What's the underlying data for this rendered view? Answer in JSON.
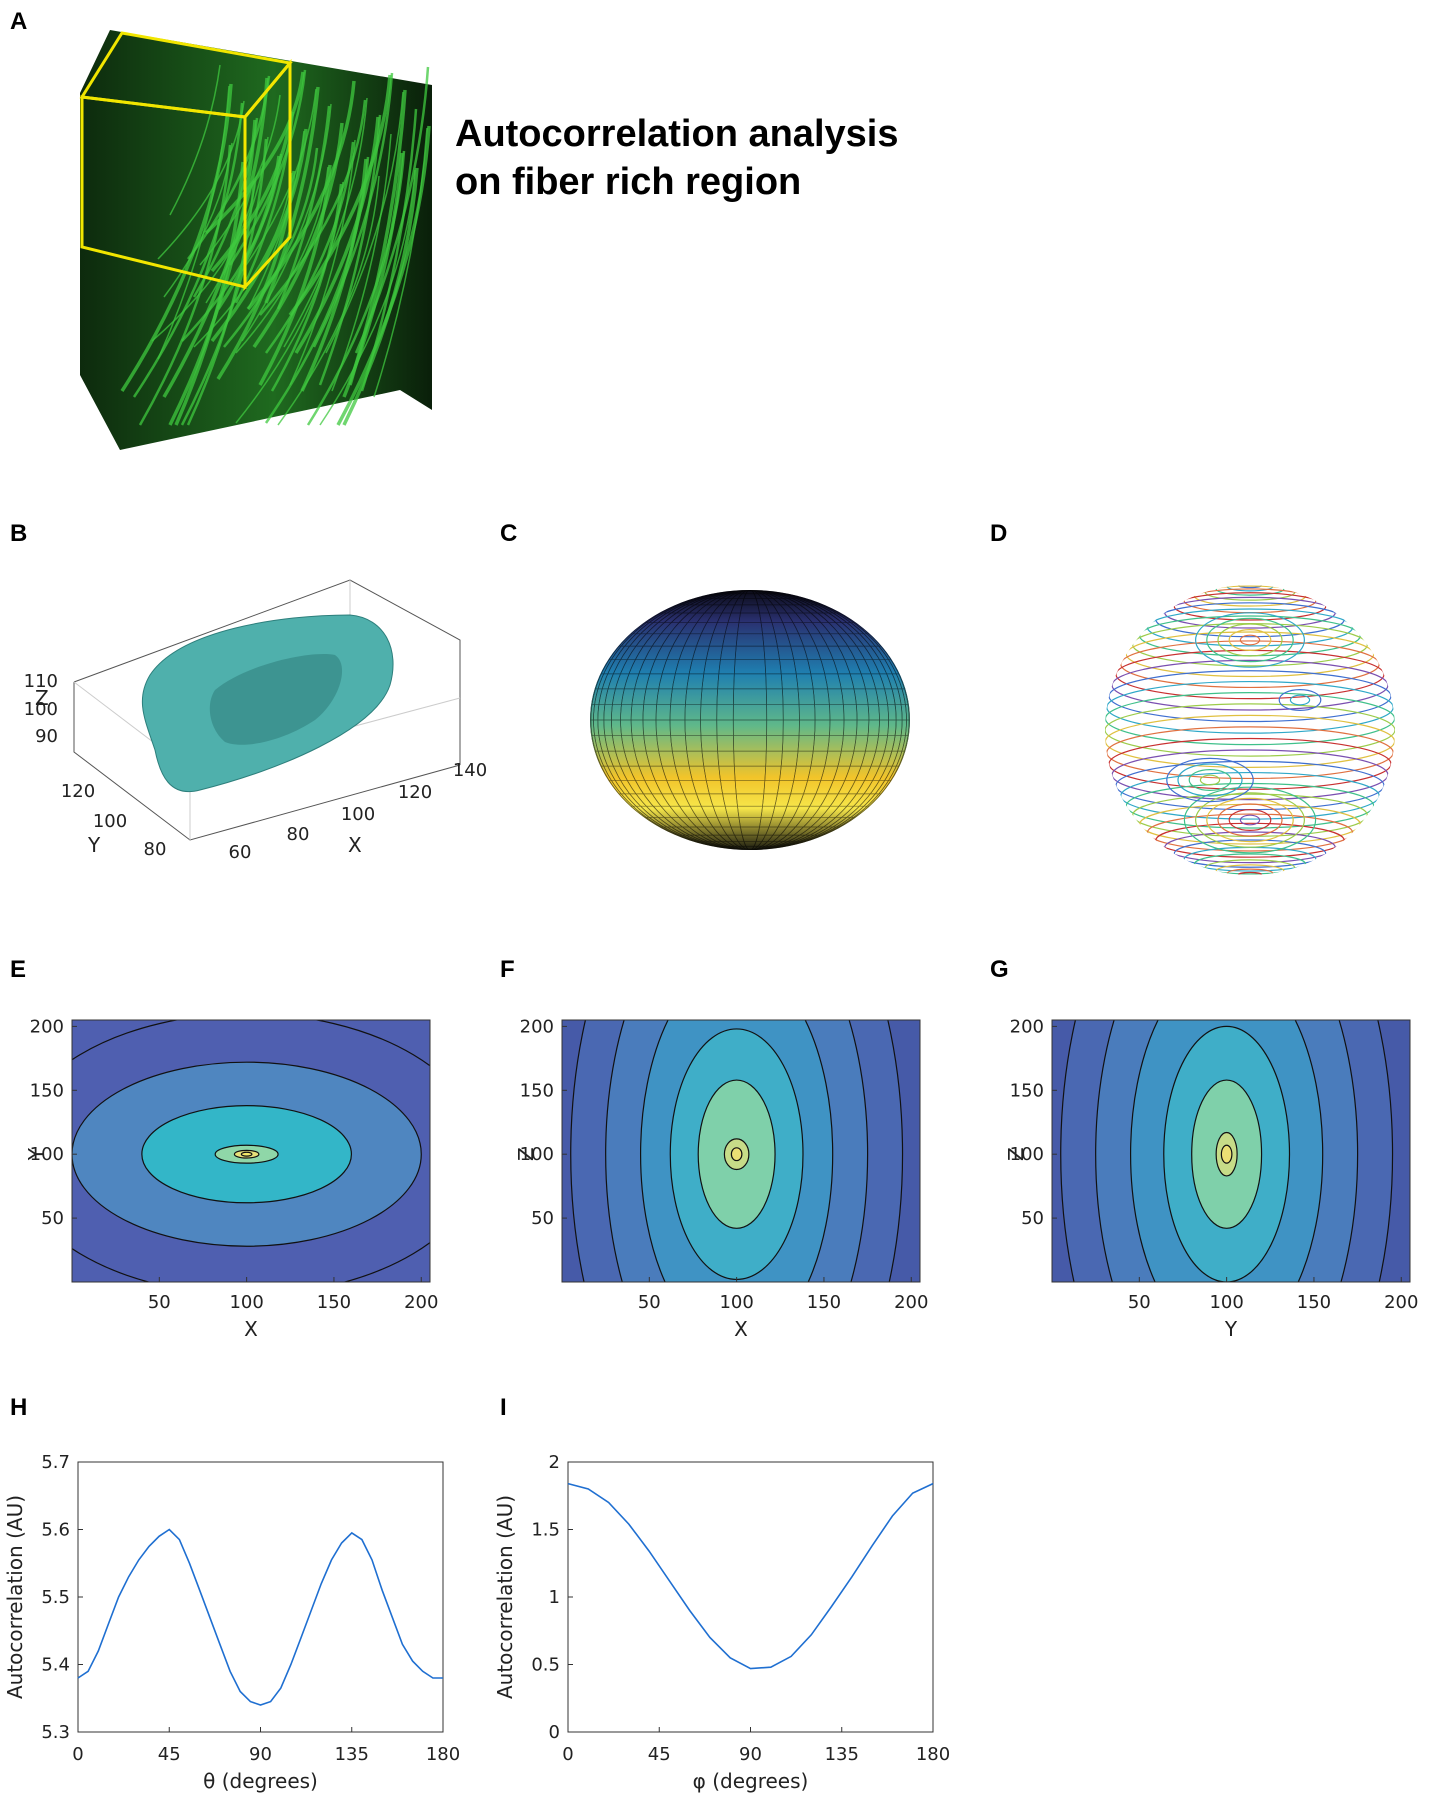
{
  "panels": {
    "A": {
      "letter": "A",
      "headline": [
        "Autocorrelation analysis",
        "on fiber rich region"
      ]
    },
    "B": {
      "letter": "B"
    },
    "C": {
      "letter": "C"
    },
    "D": {
      "letter": "D"
    },
    "E": {
      "letter": "E"
    },
    "F": {
      "letter": "F"
    },
    "G": {
      "letter": "G"
    },
    "H": {
      "letter": "H"
    },
    "I": {
      "letter": "I"
    }
  },
  "colors": {
    "fiber_green": "#3fc83f",
    "roi_box": "#f2e600",
    "isosurface": "#4fb0ac",
    "line": "#1f6fd1",
    "contour_outer": "#4f5fb0",
    "contour_inner": "#e6e07a"
  },
  "chart_data": [
    {
      "panel": "B",
      "type": "isosurface",
      "xlabel": "X",
      "ylabel": "Y",
      "zlabel": "Z",
      "x_ticks": [
        "60",
        "80",
        "100",
        "120",
        "140"
      ],
      "y_ticks": [
        "80",
        "100",
        "120"
      ],
      "z_ticks": [
        "90",
        "100",
        "110"
      ]
    },
    {
      "panel": "C",
      "type": "surface",
      "description": "spherical surface colored by value"
    },
    {
      "panel": "D",
      "type": "contour3d",
      "description": "contour lines on a sphere"
    },
    {
      "panel": "E",
      "type": "contour",
      "xlabel": "X",
      "ylabel": "Y",
      "xlim": [
        0,
        205
      ],
      "ylim": [
        0,
        205
      ],
      "x_ticks": [
        50,
        100,
        150,
        200
      ],
      "y_ticks": [
        50,
        100,
        150,
        200
      ],
      "center": [
        100,
        100
      ],
      "levels": [
        {
          "rx": 135,
          "ry": 110,
          "color": "#4f5fb0"
        },
        {
          "rx": 100,
          "ry": 72,
          "color": "#4f86c0"
        },
        {
          "rx": 60,
          "ry": 38,
          "color": "#33b6c8"
        },
        {
          "rx": 18,
          "ry": 7,
          "color": "#8fd7a8"
        },
        {
          "rx": 7,
          "ry": 3,
          "color": "#e6e07a"
        },
        {
          "rx": 3,
          "ry": 1.5,
          "color": "#f4e96a"
        }
      ]
    },
    {
      "panel": "F",
      "type": "contour",
      "xlabel": "X",
      "ylabel": "Z",
      "xlim": [
        0,
        205
      ],
      "ylim": [
        0,
        205
      ],
      "x_ticks": [
        50,
        100,
        150,
        200
      ],
      "y_ticks": [
        50,
        100,
        150,
        200
      ],
      "center": [
        100,
        100
      ],
      "levels": [
        {
          "rx": 118,
          "ry": 300,
          "color": "#465aa8"
        },
        {
          "rx": 95,
          "ry": 255,
          "color": "#4a68b2"
        },
        {
          "rx": 75,
          "ry": 205,
          "color": "#4a7cbc"
        },
        {
          "rx": 55,
          "ry": 150,
          "color": "#3f93c4"
        },
        {
          "rx": 38,
          "ry": 98,
          "color": "#3faec8"
        },
        {
          "rx": 22,
          "ry": 58,
          "color": "#7fd0aa"
        },
        {
          "rx": 7,
          "ry": 12,
          "color": "#c7dc88"
        },
        {
          "rx": 3,
          "ry": 5,
          "color": "#ecdf74"
        }
      ]
    },
    {
      "panel": "G",
      "type": "contour",
      "xlabel": "Y",
      "ylabel": "Z",
      "xlim": [
        0,
        205
      ],
      "ylim": [
        0,
        205
      ],
      "x_ticks": [
        50,
        100,
        150,
        200
      ],
      "y_ticks": [
        50,
        100,
        150,
        200
      ],
      "center": [
        100,
        100
      ],
      "levels": [
        {
          "rx": 118,
          "ry": 300,
          "color": "#465aa8"
        },
        {
          "rx": 95,
          "ry": 255,
          "color": "#4a68b2"
        },
        {
          "rx": 75,
          "ry": 205,
          "color": "#4a7cbc"
        },
        {
          "rx": 55,
          "ry": 150,
          "color": "#3f93c4"
        },
        {
          "rx": 36,
          "ry": 100,
          "color": "#3faec8"
        },
        {
          "rx": 20,
          "ry": 58,
          "color": "#7fd0aa"
        },
        {
          "rx": 6,
          "ry": 17,
          "color": "#c7dc88"
        },
        {
          "rx": 3,
          "ry": 7,
          "color": "#ecdf74"
        }
      ]
    },
    {
      "panel": "H",
      "type": "line",
      "xlabel": "θ (degrees)",
      "ylabel": "Autocorrelation (AU)",
      "xlim": [
        0,
        180
      ],
      "ylim": [
        5.3,
        5.7
      ],
      "x_ticks": [
        0,
        45,
        90,
        135,
        180
      ],
      "y_ticks": [
        5.3,
        5.4,
        5.5,
        5.6,
        5.7
      ],
      "x": [
        0,
        5,
        10,
        15,
        20,
        25,
        30,
        35,
        40,
        45,
        50,
        55,
        60,
        65,
        70,
        75,
        80,
        85,
        90,
        95,
        100,
        105,
        110,
        115,
        120,
        125,
        130,
        135,
        140,
        145,
        150,
        155,
        160,
        165,
        170,
        175,
        180
      ],
      "y": [
        5.38,
        5.39,
        5.42,
        5.46,
        5.5,
        5.53,
        5.555,
        5.575,
        5.59,
        5.6,
        5.585,
        5.55,
        5.51,
        5.47,
        5.43,
        5.39,
        5.36,
        5.345,
        5.34,
        5.345,
        5.365,
        5.4,
        5.44,
        5.48,
        5.52,
        5.555,
        5.58,
        5.595,
        5.585,
        5.555,
        5.51,
        5.47,
        5.43,
        5.405,
        5.39,
        5.38,
        5.38
      ]
    },
    {
      "panel": "I",
      "type": "line",
      "xlabel": "φ (degrees)",
      "ylabel": "Autocorrelation (AU)",
      "xlim": [
        0,
        180
      ],
      "ylim": [
        0,
        2
      ],
      "x_ticks": [
        0,
        45,
        90,
        135,
        180
      ],
      "y_ticks": [
        0,
        0.5,
        1,
        1.5,
        2
      ],
      "x": [
        0,
        10,
        20,
        30,
        40,
        50,
        60,
        70,
        80,
        90,
        100,
        110,
        120,
        130,
        140,
        150,
        160,
        170,
        180
      ],
      "y": [
        1.84,
        1.8,
        1.7,
        1.54,
        1.34,
        1.12,
        0.9,
        0.7,
        0.55,
        0.47,
        0.48,
        0.56,
        0.72,
        0.93,
        1.15,
        1.38,
        1.6,
        1.77,
        1.84
      ]
    }
  ]
}
